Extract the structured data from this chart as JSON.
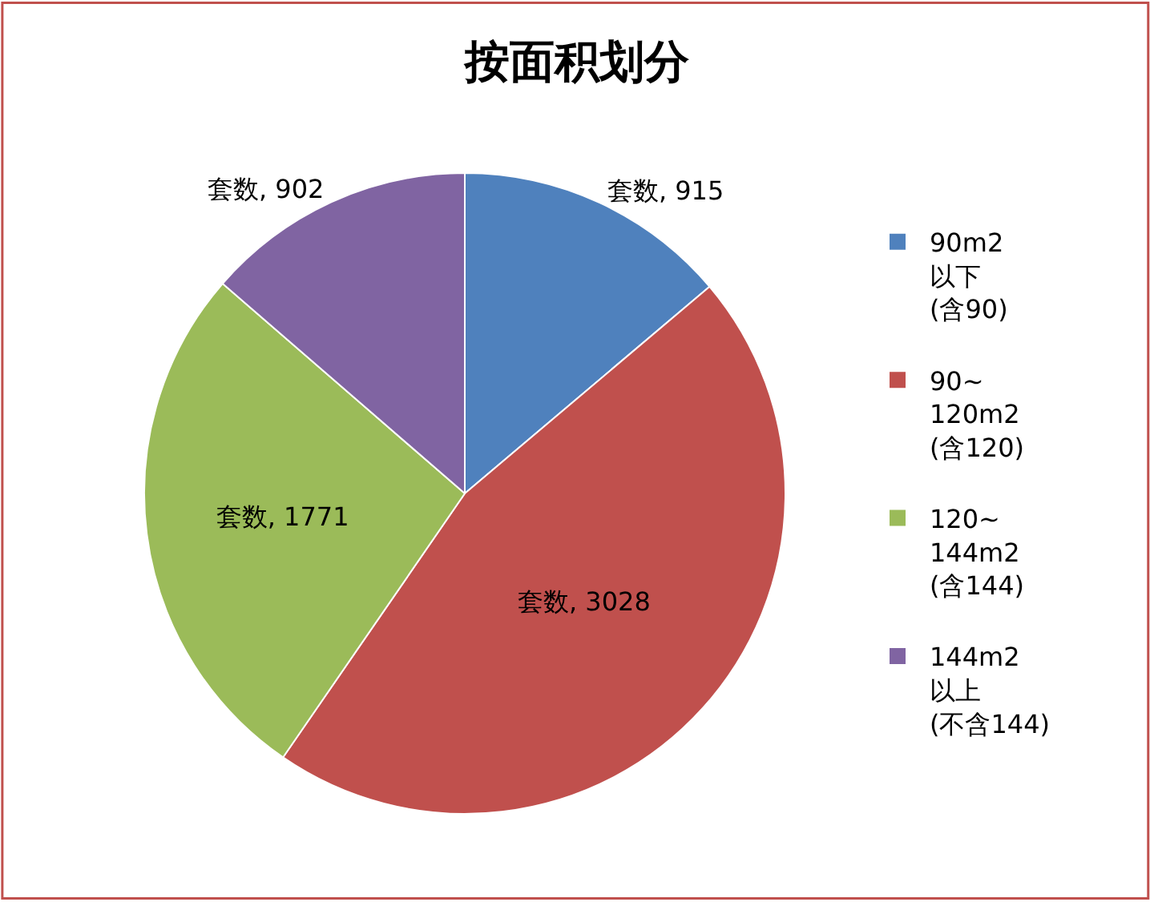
{
  "chart_data": {
    "type": "pie",
    "title": "按面积划分",
    "categories": [
      "90m2\n以下\n(含90)",
      "90~\n120m2\n(含120)",
      "120~\n144m2\n(含144)",
      "144m2\n以上\n(不含144)"
    ],
    "values": [
      915,
      3028,
      1771,
      902
    ],
    "colors": [
      "#4f81bd",
      "#c0504d",
      "#9bbb59",
      "#8064a2"
    ],
    "value_labels": [
      "套数, 915",
      "套数, 3028",
      "套数, 1771",
      "套数, 902"
    ],
    "legend": "right"
  }
}
